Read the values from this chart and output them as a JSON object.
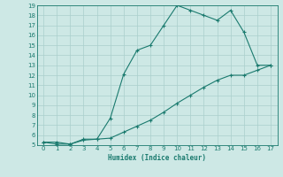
{
  "upper_x": [
    0,
    1,
    2,
    3,
    4,
    5,
    6,
    7,
    8,
    9,
    10,
    11,
    12,
    13,
    14,
    15,
    16,
    17
  ],
  "upper_y": [
    5.3,
    5.1,
    5.1,
    5.5,
    5.6,
    7.7,
    12.1,
    14.5,
    15.0,
    17.0,
    19.0,
    18.5,
    18.0,
    17.5,
    18.5,
    16.3,
    13.0,
    13.0
  ],
  "lower_x": [
    0,
    1,
    2,
    3,
    4,
    5,
    6,
    7,
    8,
    9,
    10,
    11,
    12,
    13,
    14,
    15,
    16,
    17
  ],
  "lower_y": [
    5.3,
    5.3,
    5.1,
    5.6,
    5.6,
    5.7,
    6.3,
    6.9,
    7.5,
    8.3,
    9.2,
    10.0,
    10.8,
    11.5,
    12.0,
    12.0,
    12.5,
    13.0
  ],
  "line_color": "#1a7a6e",
  "bg_color": "#cde8e5",
  "grid_color": "#aacfcc",
  "xlabel": "Humidex (Indice chaleur)",
  "ylim": [
    5,
    19
  ],
  "xlim": [
    -0.5,
    17.5
  ],
  "yticks": [
    5,
    6,
    7,
    8,
    9,
    10,
    11,
    12,
    13,
    14,
    15,
    16,
    17,
    18,
    19
  ],
  "xticks": [
    0,
    1,
    2,
    3,
    4,
    5,
    6,
    7,
    8,
    9,
    10,
    11,
    12,
    13,
    14,
    15,
    16,
    17
  ]
}
